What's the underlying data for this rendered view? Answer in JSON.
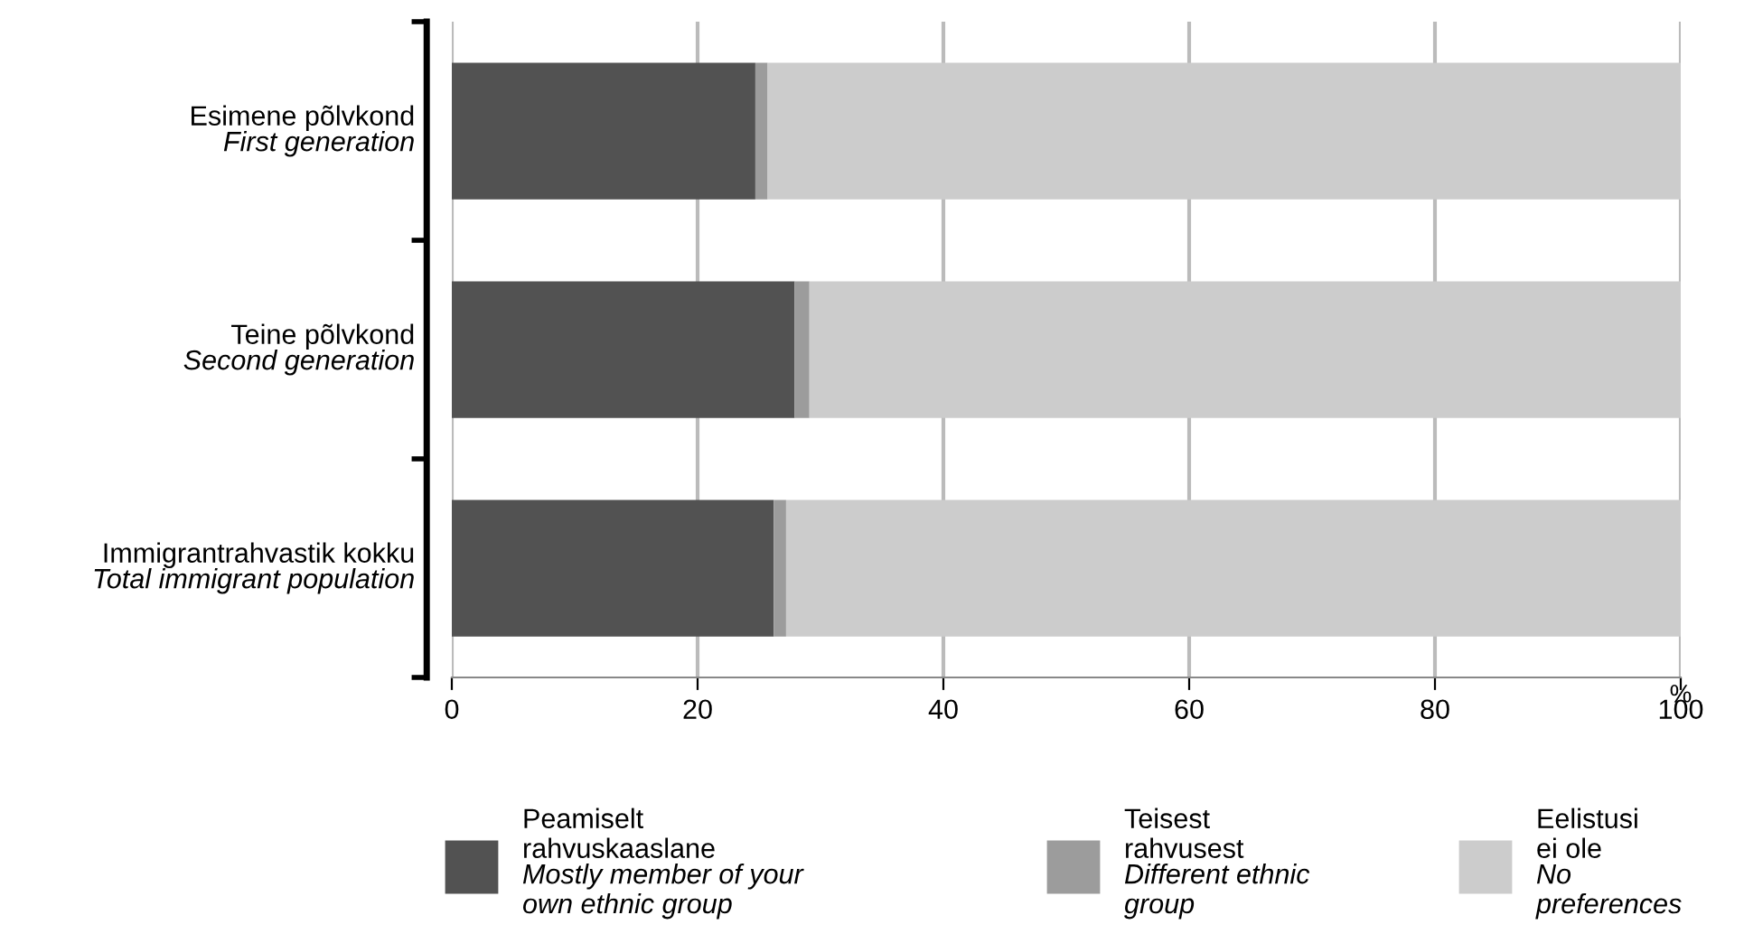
{
  "chart_data": {
    "type": "bar",
    "orientation": "horizontal",
    "stacked": true,
    "categories": [
      "Esimene põlvkond\nFirst generation",
      "Teine põlvkond\nSecond generation",
      "Immigrantrahvastik kokku\nTotal immigrant population"
    ],
    "series": [
      {
        "name": "Peamiselt\nrahvuskaaslane\nMostly member of your\nown ethnic group",
        "color": "#525252",
        "values": [
          24.7,
          27.9,
          26.2
        ]
      },
      {
        "name": "Teisest\nrahvusest\nDifferent ethnic\ngroup",
        "color": "#9c9c9c",
        "values": [
          1.0,
          1.2,
          1.0
        ]
      },
      {
        "name": "Eelistusi\nei ole\nNo\npreferences",
        "color": "#cccccc",
        "values": [
          74.3,
          70.9,
          72.8
        ]
      }
    ],
    "xlabel": "%",
    "xlim": [
      0,
      100
    ],
    "xticks": [
      0,
      20,
      40,
      60,
      80,
      100
    ],
    "grid": "x",
    "legend": "bottom"
  }
}
